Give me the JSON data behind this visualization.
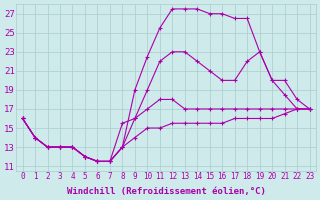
{
  "xlabel": "Windchill (Refroidissement éolien,°C)",
  "bg_color": "#ceeaea",
  "grid_color": "#aacccc",
  "line_color": "#aa00aa",
  "xlim": [
    -0.5,
    23.5
  ],
  "ylim": [
    10.5,
    28
  ],
  "xticks": [
    0,
    1,
    2,
    3,
    4,
    5,
    6,
    7,
    8,
    9,
    10,
    11,
    12,
    13,
    14,
    15,
    16,
    17,
    18,
    19,
    20,
    21,
    22,
    23
  ],
  "yticks": [
    11,
    13,
    15,
    17,
    19,
    21,
    23,
    25,
    27
  ],
  "series": [
    [
      16,
      14,
      13,
      13,
      13,
      12,
      11.5,
      11.5,
      13,
      19,
      22.5,
      25.5,
      27.5,
      27.5,
      27.5,
      27,
      27,
      26.5,
      26.5,
      23,
      20,
      18.5,
      17,
      17
    ],
    [
      16,
      14,
      13,
      13,
      13,
      12,
      11.5,
      11.5,
      13,
      16,
      19,
      22,
      23,
      23,
      22,
      21,
      20,
      20,
      22,
      23,
      20,
      20,
      18,
      17
    ],
    [
      16,
      14,
      13,
      13,
      13,
      12,
      11.5,
      11.5,
      15.5,
      16,
      17,
      18,
      18,
      17,
      17,
      17,
      17,
      17,
      17,
      17,
      17,
      17,
      17,
      17
    ],
    [
      16,
      14,
      13,
      13,
      13,
      12,
      11.5,
      11.5,
      13,
      14,
      15,
      15,
      15.5,
      15.5,
      15.5,
      15.5,
      15.5,
      16,
      16,
      16,
      16,
      16.5,
      17,
      17
    ]
  ],
  "fontsize_xlabel": 6.5,
  "fontsize_yticks": 6.5,
  "fontsize_xticks": 5.5
}
